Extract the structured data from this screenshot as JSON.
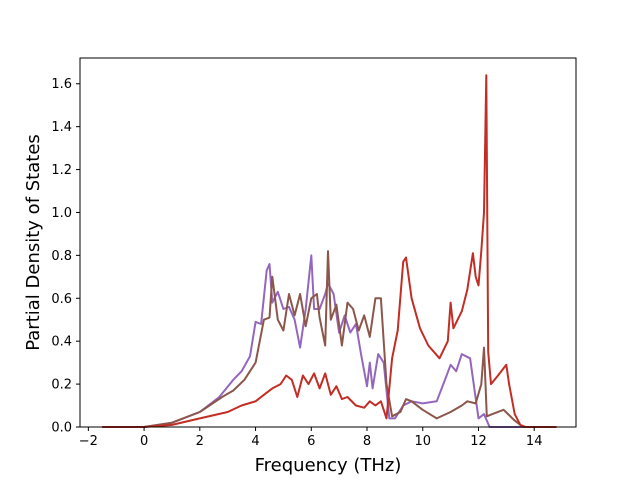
{
  "chart_data": {
    "type": "line",
    "title": "",
    "xlabel": "Frequency (THz)",
    "ylabel": "Partial Density of States",
    "xlim": [
      -2.3,
      15.5
    ],
    "ylim": [
      0.0,
      1.72
    ],
    "xticks": [
      -2,
      0,
      2,
      4,
      6,
      8,
      10,
      12,
      14
    ],
    "yticks": [
      0.0,
      0.2,
      0.4,
      0.6,
      0.8,
      1.0,
      1.2,
      1.4,
      1.6
    ],
    "xtick_labels": [
      "−2",
      "0",
      "2",
      "4",
      "6",
      "8",
      "10",
      "12",
      "14"
    ],
    "ytick_labels": [
      "0.0",
      "0.2",
      "0.4",
      "0.6",
      "0.8",
      "1.0",
      "1.2",
      "1.4",
      "1.6"
    ],
    "grid": false,
    "legend": "none",
    "series": [
      {
        "color": "#9467bd",
        "points": [
          [
            -1.5,
            0
          ],
          [
            0,
            0
          ],
          [
            1,
            0.02
          ],
          [
            2,
            0.07
          ],
          [
            2.7,
            0.14
          ],
          [
            3.2,
            0.22
          ],
          [
            3.5,
            0.26
          ],
          [
            3.8,
            0.33
          ],
          [
            4.0,
            0.49
          ],
          [
            4.2,
            0.48
          ],
          [
            4.4,
            0.73
          ],
          [
            4.5,
            0.76
          ],
          [
            4.6,
            0.58
          ],
          [
            4.8,
            0.63
          ],
          [
            5.0,
            0.55
          ],
          [
            5.2,
            0.56
          ],
          [
            5.4,
            0.5
          ],
          [
            5.6,
            0.37
          ],
          [
            5.8,
            0.55
          ],
          [
            6.0,
            0.8
          ],
          [
            6.1,
            0.55
          ],
          [
            6.3,
            0.55
          ],
          [
            6.5,
            0.62
          ],
          [
            6.6,
            0.67
          ],
          [
            6.8,
            0.62
          ],
          [
            7.0,
            0.44
          ],
          [
            7.2,
            0.52
          ],
          [
            7.4,
            0.44
          ],
          [
            7.6,
            0.48
          ],
          [
            7.8,
            0.33
          ],
          [
            8.0,
            0.19
          ],
          [
            8.1,
            0.3
          ],
          [
            8.2,
            0.18
          ],
          [
            8.4,
            0.34
          ],
          [
            8.6,
            0.3
          ],
          [
            8.8,
            0.04
          ],
          [
            9.0,
            0.04
          ],
          [
            9.3,
            0.1
          ],
          [
            9.6,
            0.12
          ],
          [
            10.0,
            0.11
          ],
          [
            10.5,
            0.12
          ],
          [
            10.8,
            0.22
          ],
          [
            11.0,
            0.29
          ],
          [
            11.2,
            0.26
          ],
          [
            11.4,
            0.34
          ],
          [
            11.7,
            0.32
          ],
          [
            12.0,
            0.04
          ],
          [
            12.2,
            0.06
          ],
          [
            12.4,
            0.0
          ],
          [
            14.8,
            0.0
          ]
        ]
      },
      {
        "color": "#8c564b",
        "points": [
          [
            -1.5,
            0
          ],
          [
            0,
            0
          ],
          [
            1,
            0.02
          ],
          [
            2,
            0.07
          ],
          [
            2.8,
            0.14
          ],
          [
            3.2,
            0.17
          ],
          [
            3.6,
            0.22
          ],
          [
            4.0,
            0.3
          ],
          [
            4.3,
            0.5
          ],
          [
            4.5,
            0.51
          ],
          [
            4.6,
            0.7
          ],
          [
            4.8,
            0.5
          ],
          [
            5.0,
            0.45
          ],
          [
            5.2,
            0.62
          ],
          [
            5.4,
            0.52
          ],
          [
            5.6,
            0.62
          ],
          [
            5.8,
            0.47
          ],
          [
            6.0,
            0.6
          ],
          [
            6.2,
            0.62
          ],
          [
            6.3,
            0.51
          ],
          [
            6.5,
            0.38
          ],
          [
            6.6,
            0.82
          ],
          [
            6.7,
            0.5
          ],
          [
            6.9,
            0.57
          ],
          [
            7.1,
            0.38
          ],
          [
            7.3,
            0.58
          ],
          [
            7.5,
            0.55
          ],
          [
            7.7,
            0.45
          ],
          [
            7.9,
            0.52
          ],
          [
            8.1,
            0.42
          ],
          [
            8.3,
            0.6
          ],
          [
            8.5,
            0.6
          ],
          [
            8.7,
            0.2
          ],
          [
            8.9,
            0.05
          ],
          [
            9.2,
            0.07
          ],
          [
            9.4,
            0.13
          ],
          [
            9.6,
            0.12
          ],
          [
            10.0,
            0.08
          ],
          [
            10.5,
            0.04
          ],
          [
            11.0,
            0.07
          ],
          [
            11.4,
            0.1
          ],
          [
            11.6,
            0.12
          ],
          [
            11.9,
            0.11
          ],
          [
            12.1,
            0.2
          ],
          [
            12.2,
            0.37
          ],
          [
            12.3,
            0.05
          ],
          [
            12.5,
            0.06
          ],
          [
            12.9,
            0.08
          ],
          [
            13.3,
            0.03
          ],
          [
            13.6,
            0.0
          ],
          [
            14.8,
            0.0
          ]
        ]
      },
      {
        "color": "#c22e25",
        "points": [
          [
            -1.5,
            0
          ],
          [
            0,
            0
          ],
          [
            1,
            0.01
          ],
          [
            2,
            0.04
          ],
          [
            3,
            0.07
          ],
          [
            3.5,
            0.1
          ],
          [
            4.0,
            0.12
          ],
          [
            4.3,
            0.15
          ],
          [
            4.6,
            0.18
          ],
          [
            4.9,
            0.2
          ],
          [
            5.1,
            0.24
          ],
          [
            5.3,
            0.22
          ],
          [
            5.5,
            0.14
          ],
          [
            5.7,
            0.24
          ],
          [
            5.9,
            0.2
          ],
          [
            6.1,
            0.25
          ],
          [
            6.3,
            0.18
          ],
          [
            6.5,
            0.25
          ],
          [
            6.7,
            0.15
          ],
          [
            6.9,
            0.19
          ],
          [
            7.1,
            0.13
          ],
          [
            7.3,
            0.14
          ],
          [
            7.6,
            0.1
          ],
          [
            7.9,
            0.09
          ],
          [
            8.1,
            0.12
          ],
          [
            8.3,
            0.1
          ],
          [
            8.5,
            0.12
          ],
          [
            8.7,
            0.04
          ],
          [
            8.9,
            0.32
          ],
          [
            9.1,
            0.45
          ],
          [
            9.3,
            0.77
          ],
          [
            9.4,
            0.79
          ],
          [
            9.6,
            0.6
          ],
          [
            9.9,
            0.46
          ],
          [
            10.2,
            0.38
          ],
          [
            10.6,
            0.32
          ],
          [
            10.9,
            0.4
          ],
          [
            11.0,
            0.58
          ],
          [
            11.1,
            0.46
          ],
          [
            11.4,
            0.54
          ],
          [
            11.6,
            0.64
          ],
          [
            11.8,
            0.81
          ],
          [
            11.9,
            0.7
          ],
          [
            12.0,
            0.66
          ],
          [
            12.1,
            0.82
          ],
          [
            12.2,
            1.0
          ],
          [
            12.28,
            1.64
          ],
          [
            12.35,
            0.35
          ],
          [
            12.45,
            0.2
          ],
          [
            12.7,
            0.24
          ],
          [
            13.0,
            0.29
          ],
          [
            13.1,
            0.2
          ],
          [
            13.3,
            0.06
          ],
          [
            13.5,
            0.01
          ],
          [
            13.7,
            0.0
          ],
          [
            14.8,
            0.0
          ]
        ]
      }
    ]
  }
}
